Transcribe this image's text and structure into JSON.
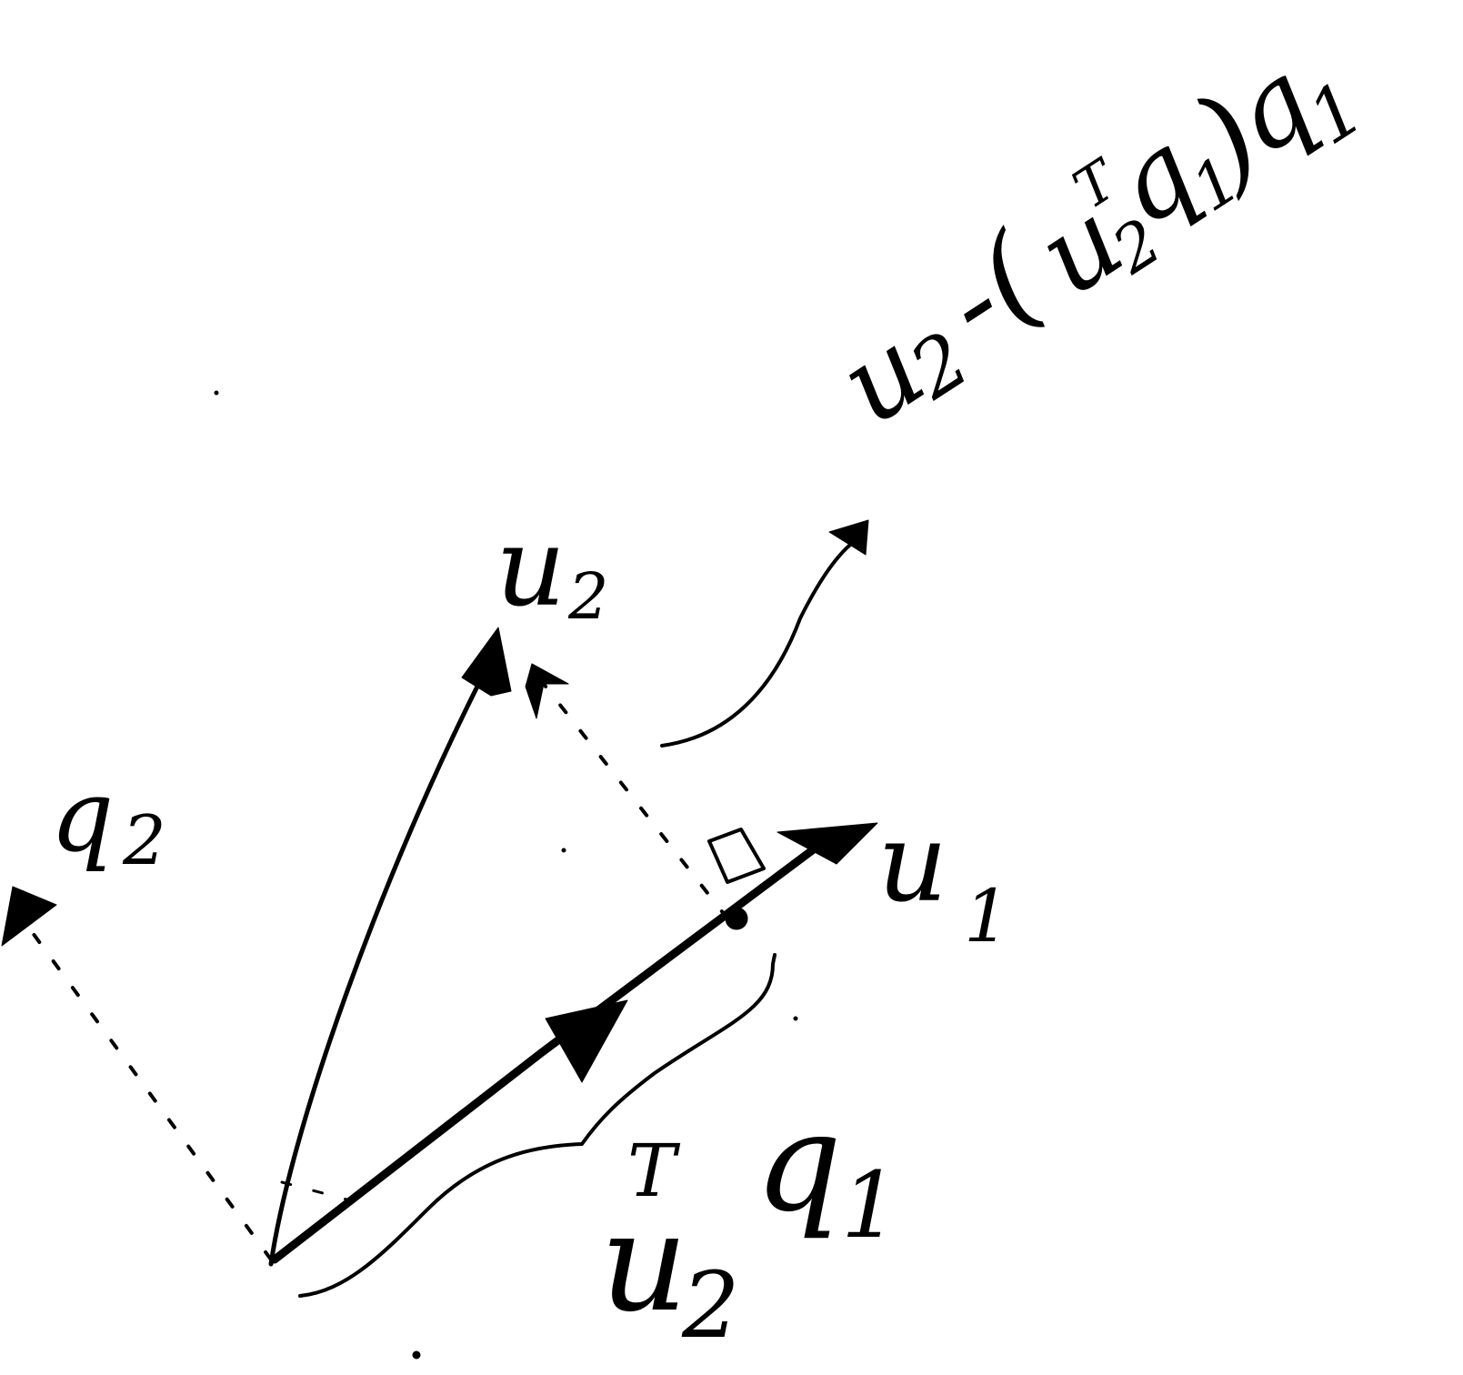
{
  "diagram": {
    "vectors": {
      "u1": "u",
      "u1_sub": "1",
      "u2": "u",
      "u2_sub": "2",
      "q2": "q",
      "q2_sub": "2"
    },
    "projection_label": {
      "base": "u",
      "sub": "2",
      "sup": "T",
      "q": "q",
      "q_sub": "1"
    },
    "residual_label": {
      "u": "u",
      "u_sub": "2",
      "minus_paren": "-(",
      "inner_u": "u",
      "inner_sup": "T",
      "inner_sub": "2",
      "inner_q": "q",
      "inner_q_sub": "1",
      "close_paren": ")",
      "outer_q": "q",
      "outer_q_sub": "1"
    }
  }
}
